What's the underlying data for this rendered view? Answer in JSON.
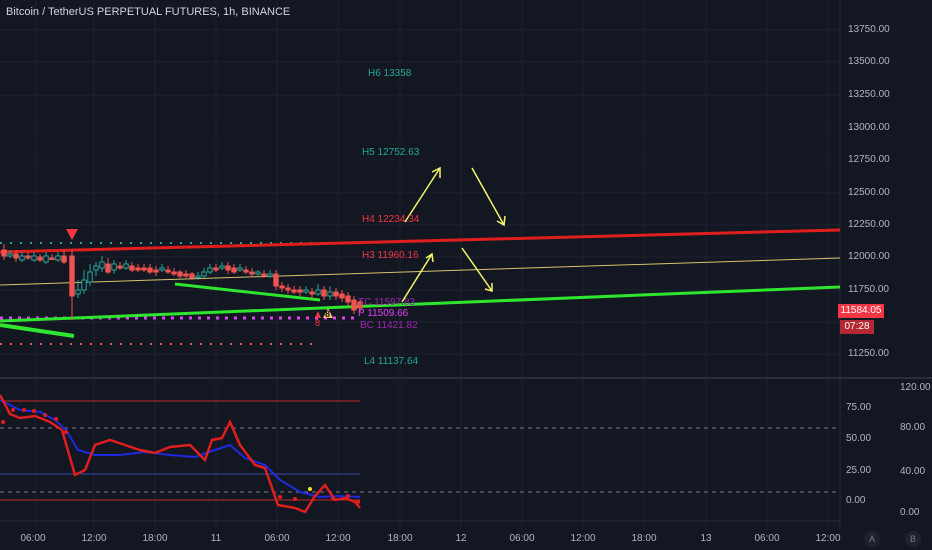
{
  "header": {
    "title": "Bitcoin / TetherUS PERPETUAL FUTURES, 1h, BINANCE"
  },
  "price_axis": {
    "labels": [
      "13750.00",
      "13500.00",
      "13250.00",
      "13000.00",
      "12750.00",
      "12500.00",
      "12250.00",
      "12000.00",
      "11750.00",
      "11250.00"
    ]
  },
  "current_price": {
    "value": "11584.05",
    "countdown": "07:28",
    "color": "#f23645"
  },
  "oscillator_axis": {
    "right_labels": [
      "120.00",
      "80.00",
      "40.00",
      "0.00"
    ],
    "left_labels": [
      "75.00",
      "50.00",
      "25.00",
      "0.00"
    ],
    "right_extra": [
      "80.00",
      "40.00",
      "0.00"
    ]
  },
  "time_axis": {
    "labels": [
      "06:00",
      "12:00",
      "18:00",
      "11",
      "06:00",
      "12:00",
      "18:00",
      "12",
      "06:00",
      "12:00",
      "18:00",
      "13",
      "06:00",
      "12:00"
    ]
  },
  "pivot_levels": [
    {
      "label": "H6 13358",
      "color": "#26a69a"
    },
    {
      "label": "H5 12752.63",
      "color": "#26a69a"
    },
    {
      "label": "H4 12234.34",
      "color": "#f23645"
    },
    {
      "label": "H3 11960.16",
      "color": "#f23645"
    },
    {
      "label": "TC 11597.83",
      "color": "#9c27b0"
    },
    {
      "label": "P 11509.66",
      "color": "#e040fb"
    },
    {
      "label": "BC 11421.82",
      "color": "#9c27b0"
    },
    {
      "label": "L4 11137.64",
      "color": "#26a69a"
    }
  ],
  "markers": {
    "eight_label": "8",
    "triangle_label": "8"
  },
  "corner_buttons": {
    "a": "A",
    "b": "B"
  },
  "colors": {
    "up": "#26a69a",
    "down": "#ef5350",
    "resistance": "#e01e1e",
    "support": "#2ee62e",
    "yellow": "#f5f567"
  }
}
